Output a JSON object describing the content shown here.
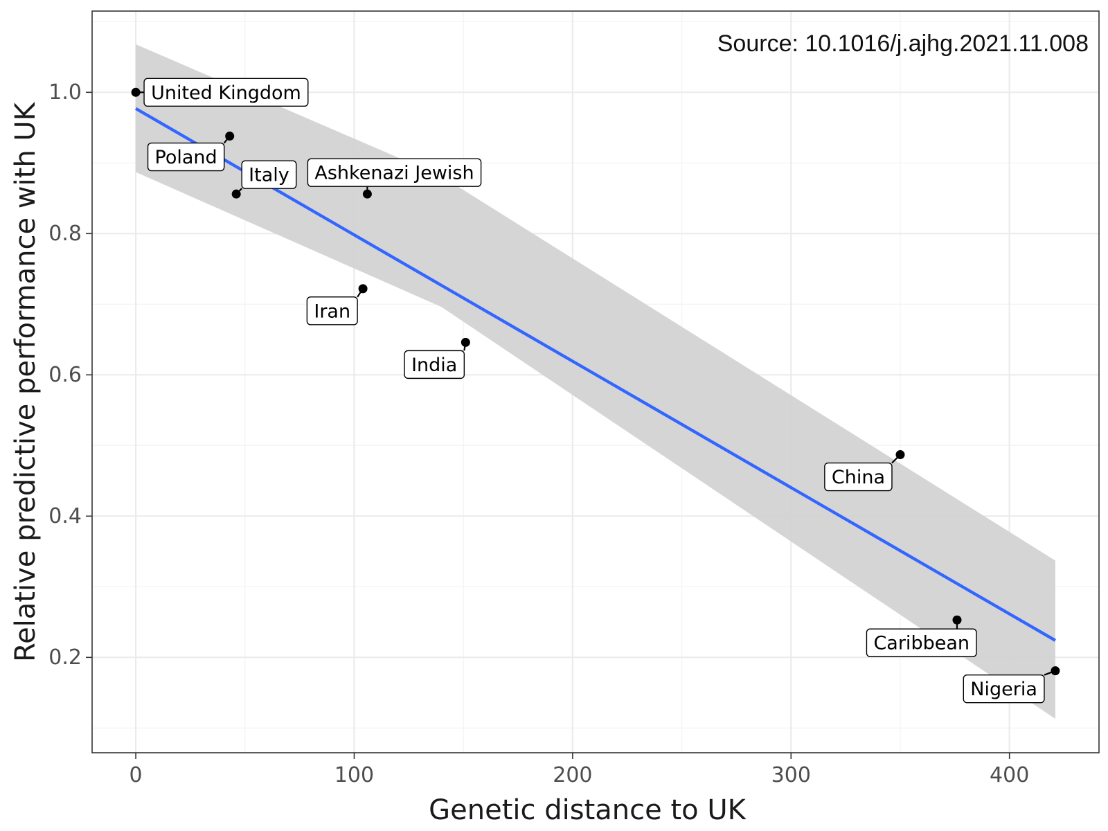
{
  "chart_data": {
    "type": "scatter",
    "title": "",
    "annotation": "Source: 10.1016/j.ajhg.2021.11.008",
    "xlabel": "Genetic distance to UK",
    "ylabel": "Relative predictive performance with UK",
    "xlim": [
      -20,
      441
    ],
    "ylim": [
      0.065,
      1.115
    ],
    "x_ticks": [
      0,
      100,
      200,
      300,
      400
    ],
    "x_tick_labels": [
      "0",
      "100",
      "200",
      "300",
      "400"
    ],
    "y_ticks": [
      0.2,
      0.4,
      0.6,
      0.8,
      1.0
    ],
    "y_tick_labels": [
      "0.2",
      "0.4",
      "0.6",
      "0.8",
      "1.0"
    ],
    "grid": true,
    "colors": {
      "points": "#000000",
      "fit_line": "#3366ff",
      "confidence_band": "#d3d3d3",
      "panel_border": "#333333",
      "grid_major": "#ebebeb",
      "grid_minor": "#f4f4f4"
    },
    "points": [
      {
        "label": "United Kingdom",
        "x": 0,
        "y": 1.0
      },
      {
        "label": "Poland",
        "x": 43,
        "y": 0.938
      },
      {
        "label": "Italy",
        "x": 46,
        "y": 0.856
      },
      {
        "label": "Ashkenazi Jewish",
        "x": 106,
        "y": 0.856
      },
      {
        "label": "Iran",
        "x": 104,
        "y": 0.722
      },
      {
        "label": "India",
        "x": 151,
        "y": 0.646
      },
      {
        "label": "China",
        "x": 350,
        "y": 0.487
      },
      {
        "label": "Caribbean",
        "x": 376,
        "y": 0.253
      },
      {
        "label": "Nigeria",
        "x": 421,
        "y": 0.181
      }
    ],
    "fit_line": {
      "x": [
        0,
        421
      ],
      "y": [
        0.977,
        0.224
      ]
    },
    "confidence_band": {
      "x": [
        0,
        140,
        421
      ],
      "upper": [
        1.068,
        0.881,
        0.337
      ],
      "lower": [
        0.887,
        0.696,
        0.113
      ]
    }
  }
}
